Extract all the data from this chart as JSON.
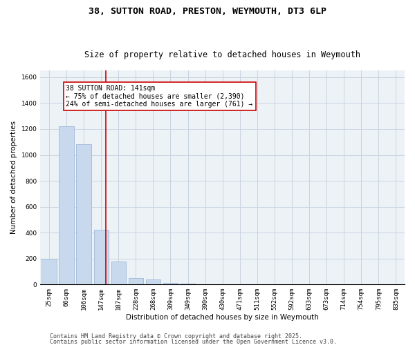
{
  "title_line1": "38, SUTTON ROAD, PRESTON, WEYMOUTH, DT3 6LP",
  "title_line2": "Size of property relative to detached houses in Weymouth",
  "xlabel": "Distribution of detached houses by size in Weymouth",
  "ylabel": "Number of detached properties",
  "categories": [
    "25sqm",
    "66sqm",
    "106sqm",
    "147sqm",
    "187sqm",
    "228sqm",
    "268sqm",
    "309sqm",
    "349sqm",
    "390sqm",
    "430sqm",
    "471sqm",
    "511sqm",
    "552sqm",
    "592sqm",
    "633sqm",
    "673sqm",
    "714sqm",
    "754sqm",
    "795sqm",
    "835sqm"
  ],
  "values": [
    200,
    1220,
    1080,
    420,
    180,
    50,
    40,
    15,
    5,
    2,
    0,
    0,
    0,
    0,
    0,
    0,
    0,
    0,
    0,
    0,
    0
  ],
  "bar_color": "#c8d9ed",
  "bar_edge_color": "#a0b8d8",
  "grid_color": "#c8d4e0",
  "background_color": "#edf2f7",
  "vline_x_index": 3,
  "vline_color": "#cc0000",
  "annotation_text": "38 SUTTON ROAD: 141sqm\n← 75% of detached houses are smaller (2,390)\n24% of semi-detached houses are larger (761) →",
  "annotation_box_color": "#ffffff",
  "annotation_box_edge_color": "#cc0000",
  "ylim": [
    0,
    1650
  ],
  "yticks": [
    0,
    200,
    400,
    600,
    800,
    1000,
    1200,
    1400,
    1600
  ],
  "footnote_line1": "Contains HM Land Registry data © Crown copyright and database right 2025.",
  "footnote_line2": "Contains public sector information licensed under the Open Government Licence v3.0.",
  "title_fontsize": 9.5,
  "subtitle_fontsize": 8.5,
  "axis_label_fontsize": 7.5,
  "tick_fontsize": 6.5,
  "annotation_fontsize": 7,
  "footnote_fontsize": 6
}
